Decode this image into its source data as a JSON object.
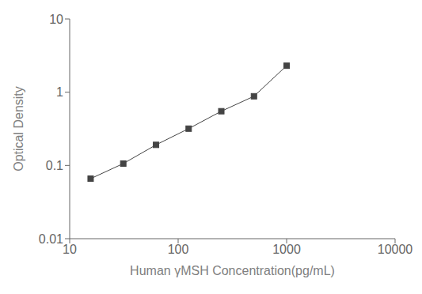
{
  "chart_data": {
    "type": "line",
    "x": [
      15.6,
      31.2,
      62.5,
      125,
      250,
      500,
      1000
    ],
    "values": [
      0.066,
      0.106,
      0.191,
      0.318,
      0.55,
      0.88,
      2.3
    ],
    "xlabel": "Human γMSH Concentration(pg/mL)",
    "ylabel": "Optical Density",
    "xlim": [
      10,
      10000
    ],
    "ylim": [
      0.01,
      10
    ],
    "xticks": [
      10,
      100,
      1000,
      10000
    ],
    "yticks": [
      0.01,
      0.1,
      1,
      10
    ],
    "log": true,
    "grid": false,
    "color": "#444444",
    "marker": "square",
    "line_style": "solid"
  }
}
